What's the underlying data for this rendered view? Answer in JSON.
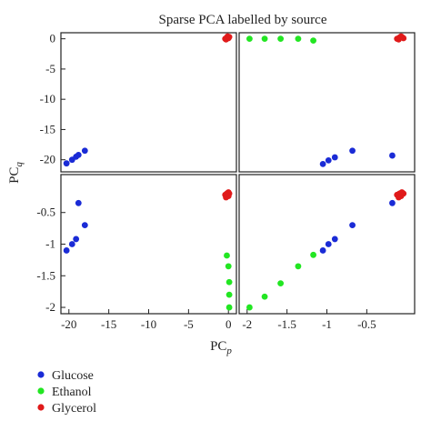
{
  "chart_data": {
    "type": "scatter",
    "title": "Sparse PCA labelled by source",
    "xlabel": {
      "base": "PC",
      "sub": "p"
    },
    "ylabel": {
      "base": "PC",
      "sub": "q"
    },
    "legend_placement": "bottom-left",
    "grid": false,
    "series_colors": {
      "Glucose": "#1a2bd6",
      "Ethanol": "#22e622",
      "Glycerol": "#e01a1a"
    },
    "legend": [
      {
        "name": "Glucose",
        "color": "#1a2bd6"
      },
      {
        "name": "Ethanol",
        "color": "#22e622"
      },
      {
        "name": "Glycerol",
        "color": "#e01a1a"
      }
    ],
    "panels": [
      {
        "id": "top-left",
        "xlim": [
          -21,
          1
        ],
        "ylim": [
          -22,
          1
        ],
        "xticks": [],
        "yticks": [
          0,
          -5,
          -10,
          -15,
          -20
        ],
        "series": [
          {
            "name": "Glucose",
            "points": [
              [
                -20.3,
                -20.6
              ],
              [
                -19.6,
                -20.0
              ],
              [
                -19.1,
                -19.5
              ],
              [
                -18.8,
                -19.2
              ],
              [
                -18.0,
                -18.5
              ]
            ]
          },
          {
            "name": "Ethanol",
            "points": []
          },
          {
            "name": "Glycerol",
            "points": [
              [
                -0.4,
                0.0
              ],
              [
                -0.2,
                0.2
              ],
              [
                -0.1,
                0.4
              ],
              [
                0.0,
                0.1
              ],
              [
                -0.3,
                -0.1
              ],
              [
                0.1,
                0.3
              ]
            ]
          }
        ]
      },
      {
        "id": "top-right",
        "xlim": [
          -2.1,
          0.1
        ],
        "ylim": [
          -22,
          1
        ],
        "xticks": [],
        "yticks": [],
        "series": [
          {
            "name": "Glucose",
            "points": [
              [
                -1.05,
                -20.7
              ],
              [
                -0.98,
                -20.1
              ],
              [
                -0.9,
                -19.6
              ],
              [
                -0.68,
                -18.5
              ],
              [
                -0.18,
                -19.3
              ]
            ]
          },
          {
            "name": "Ethanol",
            "points": [
              [
                -1.97,
                0.0
              ],
              [
                -1.78,
                0.0
              ],
              [
                -1.58,
                0.0
              ],
              [
                -1.36,
                0.0
              ],
              [
                -1.17,
                -0.3
              ]
            ]
          },
          {
            "name": "Glycerol",
            "points": [
              [
                -0.12,
                0.0
              ],
              [
                -0.09,
                0.2
              ],
              [
                -0.07,
                0.4
              ],
              [
                -0.04,
                0.1
              ],
              [
                -0.1,
                -0.1
              ],
              [
                -0.06,
                0.3
              ]
            ]
          }
        ]
      },
      {
        "id": "bottom-left",
        "xlim": [
          -21,
          1
        ],
        "ylim": [
          -2.1,
          0.1
        ],
        "xticks": [
          -20,
          -15,
          -10,
          -5,
          0
        ],
        "yticks": [
          -0.5,
          -1,
          -1.5,
          -2
        ],
        "series": [
          {
            "name": "Glucose",
            "points": [
              [
                -20.3,
                -1.1
              ],
              [
                -19.6,
                -1.0
              ],
              [
                -19.1,
                -0.92
              ],
              [
                -18.8,
                -0.35
              ],
              [
                -18.0,
                -0.7
              ]
            ]
          },
          {
            "name": "Ethanol",
            "points": [
              [
                -0.2,
                -1.18
              ],
              [
                0.0,
                -1.35
              ],
              [
                0.1,
                -1.6
              ],
              [
                0.1,
                -1.8
              ],
              [
                0.1,
                -2.0
              ]
            ]
          },
          {
            "name": "Glycerol",
            "points": [
              [
                -0.4,
                -0.22
              ],
              [
                -0.2,
                -0.2
              ],
              [
                0.0,
                -0.24
              ],
              [
                0.1,
                -0.2
              ],
              [
                -0.3,
                -0.26
              ],
              [
                0.0,
                -0.18
              ]
            ]
          }
        ]
      },
      {
        "id": "bottom-right",
        "xlim": [
          -2.1,
          0.1
        ],
        "ylim": [
          -2.1,
          0.1
        ],
        "xticks": [
          -2,
          -1.5,
          -1,
          -0.5
        ],
        "xtick_labels": [
          "-2",
          "-1.5",
          "-1",
          "-0.5"
        ],
        "yticks": [],
        "series": [
          {
            "name": "Glucose",
            "points": [
              [
                -1.05,
                -1.1
              ],
              [
                -0.98,
                -1.0
              ],
              [
                -0.9,
                -0.92
              ],
              [
                -0.68,
                -0.7
              ],
              [
                -0.18,
                -0.35
              ]
            ]
          },
          {
            "name": "Ethanol",
            "points": [
              [
                -1.97,
                -2.0
              ],
              [
                -1.78,
                -1.83
              ],
              [
                -1.58,
                -1.62
              ],
              [
                -1.36,
                -1.35
              ],
              [
                -1.17,
                -1.17
              ]
            ]
          },
          {
            "name": "Glycerol",
            "points": [
              [
                -0.12,
                -0.22
              ],
              [
                -0.09,
                -0.2
              ],
              [
                -0.07,
                -0.24
              ],
              [
                -0.04,
                -0.2
              ],
              [
                -0.1,
                -0.26
              ],
              [
                -0.06,
                -0.18
              ]
            ]
          }
        ]
      }
    ]
  }
}
